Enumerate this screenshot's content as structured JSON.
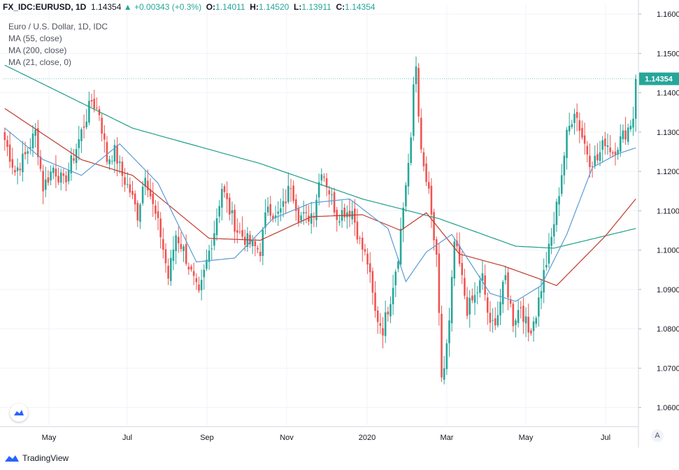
{
  "header": {
    "symbol": "FX_IDC:EURUSD, 1D",
    "last": "1.14354",
    "change": "+0.00343 (+0.3%)",
    "o_label": "O:",
    "o": "1.14011",
    "h_label": "H:",
    "h": "1.14520",
    "l_label": "L:",
    "l": "1.13911",
    "c_label": "C:",
    "c": "1.14354"
  },
  "legend": {
    "title": "Euro / U.S. Dollar, 1D, IDC",
    "ma55": "MA (55, close)",
    "ma200": "MA (200, close)",
    "ma21": "MA (21, close, 0)"
  },
  "price_tag": "1.14354",
  "brand": "TradingView",
  "scale_button": "A",
  "icons": {
    "brand": "tradingview-logo-icon",
    "chart_logo": "tradingview-chart-icon"
  },
  "colors": {
    "up": "#26a69a",
    "down": "#ef5350",
    "ma55": "#5b9bd5",
    "ma200": "#1e9e8a",
    "ma21": "#c0392b"
  },
  "chart_data": {
    "type": "candlestick",
    "symbol": "EURUSD",
    "interval": "1D",
    "y_ticks": [
      "1.16000",
      "1.15000",
      "1.14000",
      "1.13000",
      "1.12000",
      "1.11000",
      "1.10000",
      "1.09000",
      "1.08000",
      "1.07000",
      "1.06000"
    ],
    "ylim": [
      1.0555,
      1.1625
    ],
    "x_ticks": [
      "May",
      "Jul",
      "Sep",
      "Nov",
      "2020",
      "Mar",
      "May",
      "Jul"
    ],
    "close_path": [
      [
        0,
        1.128
      ],
      [
        4,
        1.12
      ],
      [
        8,
        1.124
      ],
      [
        12,
        1.13
      ],
      [
        15,
        1.116
      ],
      [
        19,
        1.121
      ],
      [
        23,
        1.117
      ],
      [
        27,
        1.124
      ],
      [
        31,
        1.132
      ],
      [
        34,
        1.138
      ],
      [
        37,
        1.135
      ],
      [
        40,
        1.123
      ],
      [
        43,
        1.125
      ],
      [
        46,
        1.119
      ],
      [
        49,
        1.115
      ],
      [
        52,
        1.109
      ],
      [
        55,
        1.12
      ],
      [
        58,
        1.111
      ],
      [
        61,
        1.104
      ],
      [
        64,
        1.093
      ],
      [
        67,
        1.104
      ],
      [
        70,
        1.1
      ],
      [
        73,
        1.094
      ],
      [
        76,
        1.088
      ],
      [
        79,
        1.097
      ],
      [
        82,
        1.105
      ],
      [
        85,
        1.116
      ],
      [
        88,
        1.11
      ],
      [
        91,
        1.105
      ],
      [
        94,
        1.103
      ],
      [
        97,
        1.101
      ],
      [
        100,
        1.1
      ],
      [
        103,
        1.112
      ],
      [
        106,
        1.108
      ],
      [
        109,
        1.111
      ],
      [
        112,
        1.117
      ],
      [
        115,
        1.109
      ],
      [
        118,
        1.108
      ],
      [
        121,
        1.11
      ],
      [
        124,
        1.121
      ],
      [
        127,
        1.115
      ],
      [
        130,
        1.109
      ],
      [
        133,
        1.11
      ],
      [
        136,
        1.11
      ],
      [
        139,
        1.102
      ],
      [
        142,
        1.097
      ],
      [
        145,
        1.084
      ],
      [
        148,
        1.08
      ],
      [
        151,
        1.088
      ],
      [
        154,
        1.099
      ],
      [
        157,
        1.117
      ],
      [
        159,
        1.127
      ],
      [
        160,
        1.142
      ],
      [
        161,
        1.147
      ],
      [
        163,
        1.124
      ],
      [
        166,
        1.114
      ],
      [
        169,
        1.097
      ],
      [
        171,
        1.068
      ],
      [
        172,
        1.07
      ],
      [
        174,
        1.081
      ],
      [
        176,
        1.102
      ],
      [
        178,
        1.096
      ],
      [
        181,
        1.085
      ],
      [
        184,
        1.088
      ],
      [
        187,
        1.093
      ],
      [
        190,
        1.08
      ],
      [
        193,
        1.084
      ],
      [
        196,
        1.093
      ],
      [
        199,
        1.082
      ],
      [
        202,
        1.086
      ],
      [
        205,
        1.079
      ],
      [
        208,
        1.084
      ],
      [
        211,
        1.094
      ],
      [
        214,
        1.103
      ],
      [
        217,
        1.115
      ],
      [
        220,
        1.129
      ],
      [
        223,
        1.136
      ],
      [
        226,
        1.129
      ],
      [
        229,
        1.123
      ],
      [
        232,
        1.123
      ],
      [
        235,
        1.128
      ],
      [
        238,
        1.125
      ],
      [
        241,
        1.128
      ],
      [
        244,
        1.131
      ],
      [
        246,
        1.134
      ],
      [
        247,
        1.1435
      ]
    ],
    "ma_path_ma55": [
      [
        0,
        1.131
      ],
      [
        15,
        1.123
      ],
      [
        30,
        1.119
      ],
      [
        45,
        1.127
      ],
      [
        60,
        1.117
      ],
      [
        75,
        1.097
      ],
      [
        90,
        1.098
      ],
      [
        105,
        1.108
      ],
      [
        120,
        1.112
      ],
      [
        135,
        1.113
      ],
      [
        150,
        1.1055
      ],
      [
        157,
        1.092
      ],
      [
        165,
        1.0995
      ],
      [
        175,
        1.104
      ],
      [
        190,
        1.089
      ],
      [
        200,
        1.087
      ],
      [
        210,
        1.091
      ],
      [
        220,
        1.104
      ],
      [
        230,
        1.121
      ],
      [
        240,
        1.1245
      ],
      [
        247,
        1.126
      ]
    ],
    "ma_path_ma200": [
      [
        0,
        1.147
      ],
      [
        50,
        1.131
      ],
      [
        100,
        1.122
      ],
      [
        140,
        1.113
      ],
      [
        170,
        1.108
      ],
      [
        200,
        1.101
      ],
      [
        215,
        1.1005
      ],
      [
        247,
        1.1055
      ]
    ],
    "ma_path_ma21": [
      [
        0,
        1.136
      ],
      [
        30,
        1.123
      ],
      [
        50,
        1.119
      ],
      [
        80,
        1.103
      ],
      [
        100,
        1.1025
      ],
      [
        120,
        1.1085
      ],
      [
        140,
        1.109
      ],
      [
        155,
        1.105
      ],
      [
        165,
        1.1095
      ],
      [
        178,
        1.099
      ],
      [
        195,
        1.096
      ],
      [
        208,
        1.093
      ],
      [
        216,
        1.091
      ],
      [
        235,
        1.1035
      ],
      [
        247,
        1.113
      ]
    ]
  }
}
